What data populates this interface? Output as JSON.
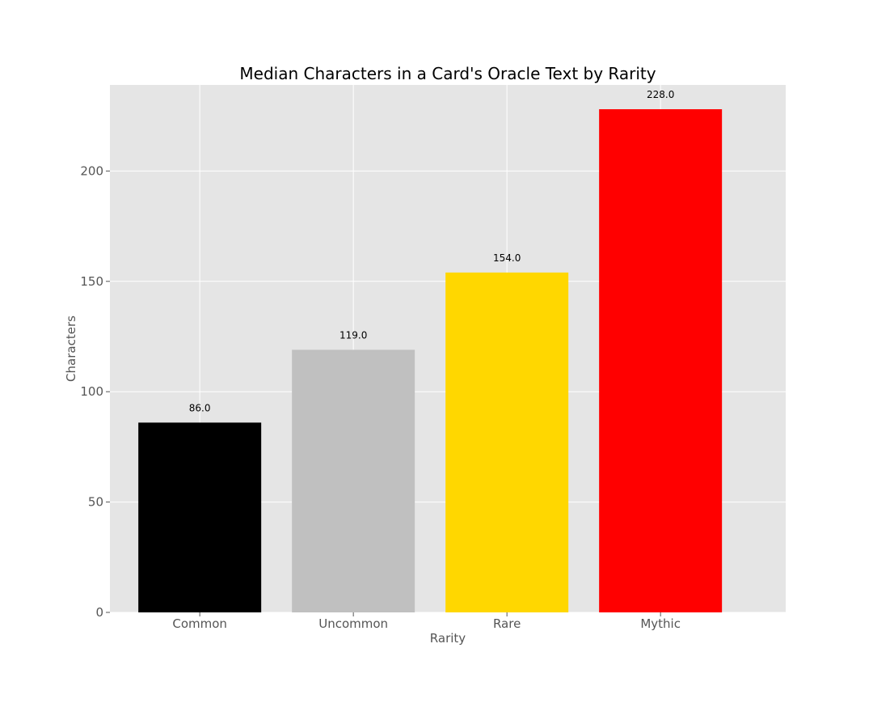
{
  "chart_data": {
    "type": "bar",
    "title": "Median Characters in a Card's Oracle Text by Rarity",
    "xlabel": "Rarity",
    "ylabel": "Characters",
    "categories": [
      "Common",
      "Uncommon",
      "Rare",
      "Mythic"
    ],
    "values": [
      86.0,
      119.0,
      154.0,
      228.0
    ],
    "data_labels": [
      "86.0",
      "119.0",
      "154.0",
      "228.0"
    ],
    "bar_colors": [
      "#000000",
      "#c0c0c0",
      "#ffd700",
      "#ff0000"
    ],
    "ylim": [
      0,
      239
    ],
    "yticks": [
      0,
      50,
      100,
      150,
      200
    ],
    "ytick_labels": [
      "0",
      "50",
      "100",
      "150",
      "200"
    ],
    "grid": true,
    "style": "ggplot",
    "background_color": "#e5e5e5",
    "grid_color": "#ffffff"
  }
}
